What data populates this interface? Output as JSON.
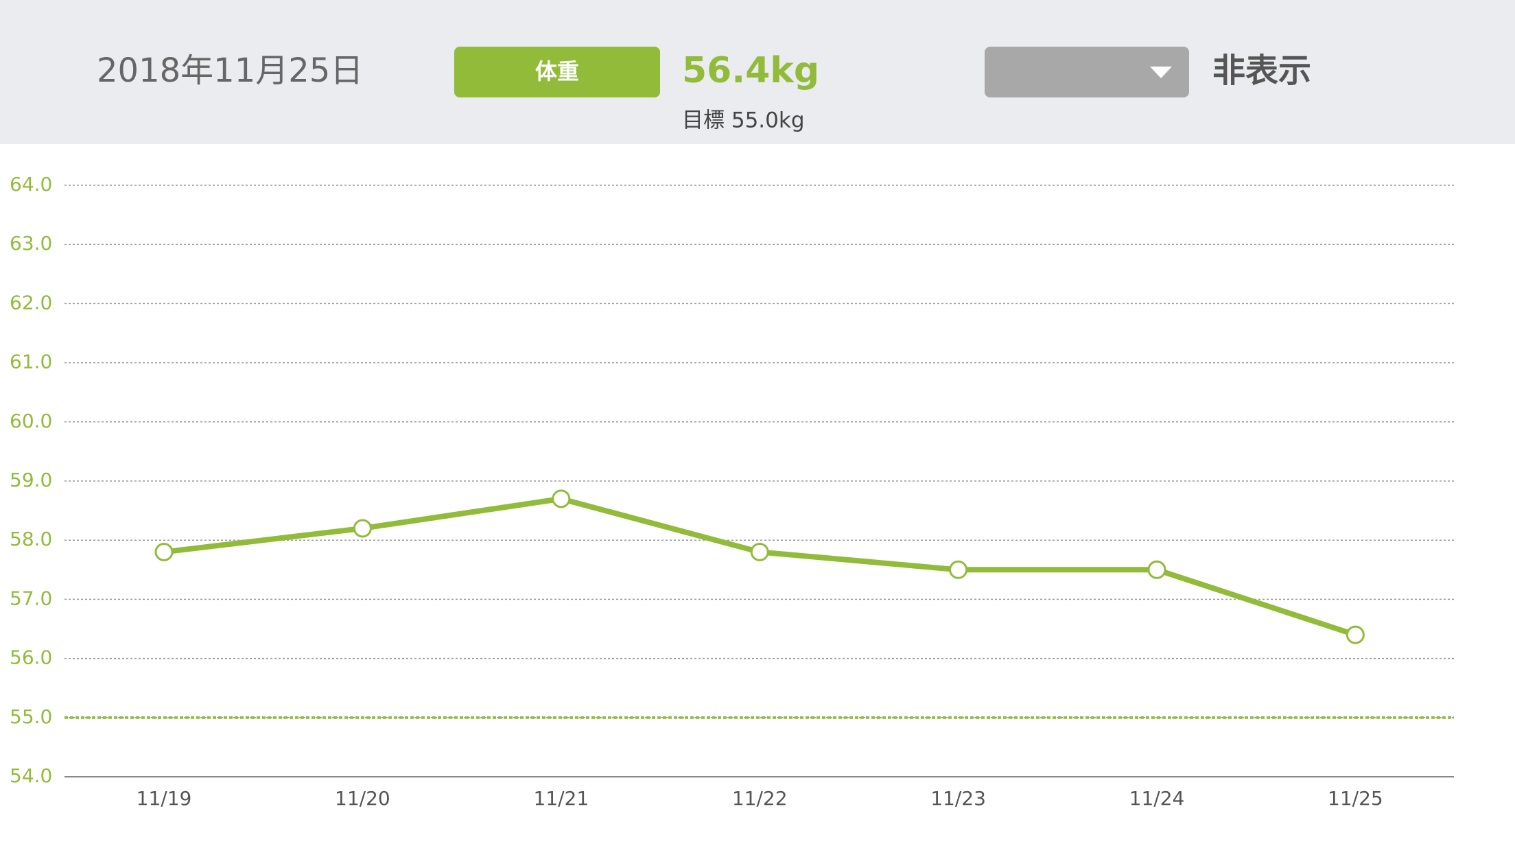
{
  "header": {
    "date": "2018年11月25日",
    "tab": "体重",
    "value": "56.4kg",
    "target": "目標 55.0kg",
    "toggle": "非表示"
  },
  "chart_data": {
    "type": "line",
    "categories": [
      "11/19",
      "11/20",
      "11/21",
      "11/22",
      "11/23",
      "11/24",
      "11/25"
    ],
    "series": [
      {
        "name": "体重",
        "color": "#92bb3a",
        "values": [
          57.8,
          58.2,
          58.7,
          57.8,
          57.5,
          57.5,
          56.4
        ]
      }
    ],
    "target_line": 55,
    "ylim": [
      54,
      64
    ],
    "yticks": [
      {
        "value": 54,
        "label": "54.0"
      },
      {
        "value": 55,
        "label": "55.0"
      },
      {
        "value": 56,
        "label": "56.0"
      },
      {
        "value": 57,
        "label": "57.0"
      },
      {
        "value": 58,
        "label": "58.0"
      },
      {
        "value": 59,
        "label": "59.0"
      },
      {
        "value": 60,
        "label": "60.0"
      },
      {
        "value": 61,
        "label": "61.0"
      },
      {
        "value": 62,
        "label": "62.0"
      },
      {
        "value": 63,
        "label": "63.0"
      },
      {
        "value": 64,
        "label": "64.0"
      }
    ],
    "grid": true
  }
}
